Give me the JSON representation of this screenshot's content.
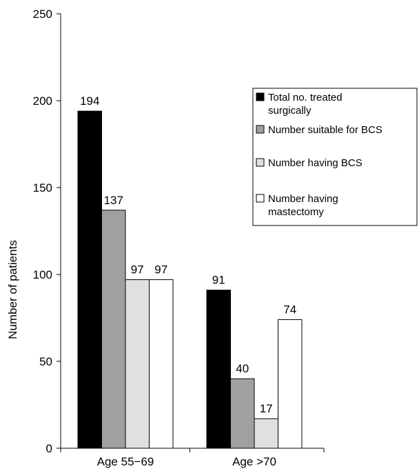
{
  "chart_data": {
    "type": "bar",
    "title": "",
    "xlabel": "",
    "ylabel": "Number of patients",
    "ylim": [
      0,
      250
    ],
    "yticks": [
      0,
      50,
      100,
      150,
      200,
      250
    ],
    "grid": false,
    "legend_position": "right",
    "categories": [
      "Age 55−69",
      "Age >70"
    ],
    "series": [
      {
        "name": "Total no. treated surgically",
        "color": "#000000",
        "values": [
          194,
          91
        ]
      },
      {
        "name": "Number suitable for BCS",
        "color": "#a0a0a0",
        "values": [
          137,
          40
        ]
      },
      {
        "name": "Number having BCS",
        "color": "#e0e0e0",
        "values": [
          97,
          17
        ]
      },
      {
        "name": "Number having mastectomy",
        "color": "#ffffff",
        "values": [
          97,
          74
        ]
      }
    ]
  }
}
